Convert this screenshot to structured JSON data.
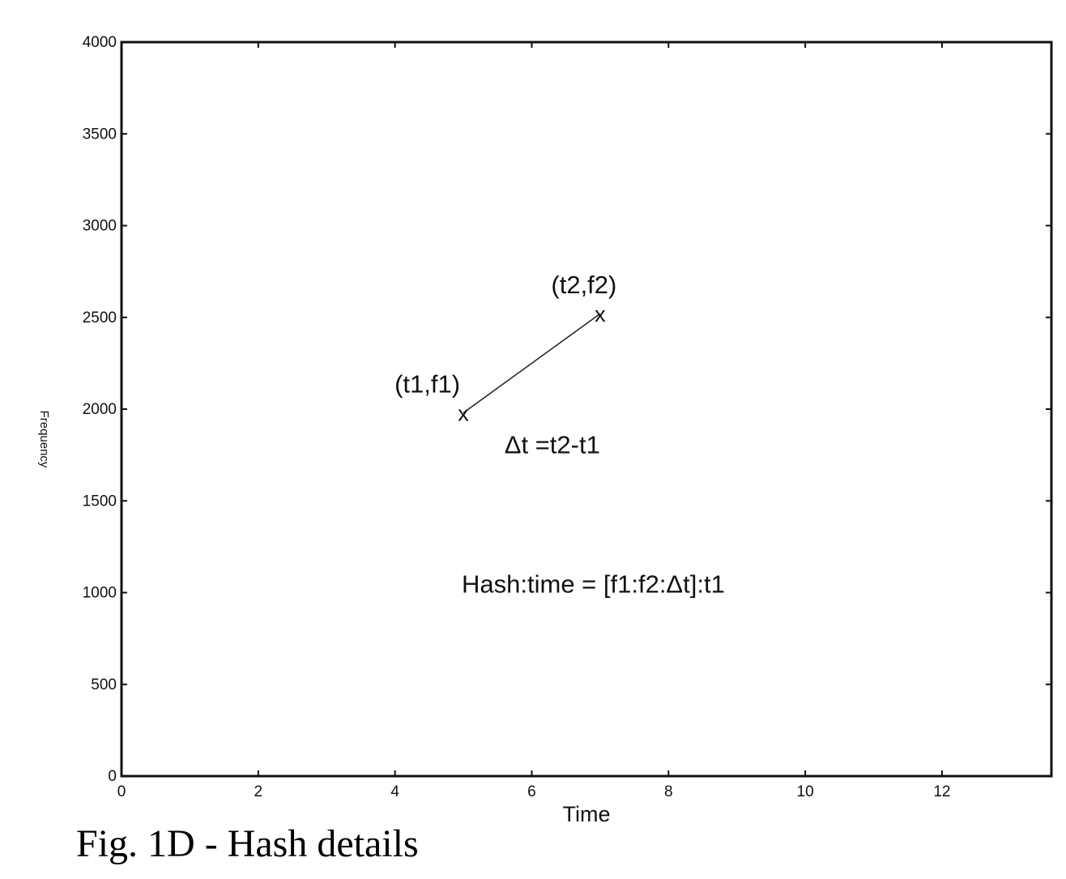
{
  "caption": "Fig. 1D - Hash details",
  "chart_data": {
    "type": "scatter",
    "title": "",
    "xlabel": "Time",
    "ylabel": "Frequency",
    "xlim": [
      0,
      13.6
    ],
    "ylim": [
      0,
      4000
    ],
    "xticks": [
      0,
      2,
      4,
      6,
      8,
      10,
      12
    ],
    "yticks": [
      0,
      500,
      1000,
      1500,
      2000,
      2500,
      3000,
      3500,
      4000
    ],
    "grid": false,
    "points": [
      {
        "label": "(t1,f1)",
        "marker": "x",
        "x": 5,
        "y": 1980
      },
      {
        "label": "(t2,f2)",
        "marker": "x",
        "x": 7,
        "y": 2520
      }
    ],
    "segments": [
      {
        "from": 0,
        "to": 1
      }
    ],
    "annotations": [
      {
        "text": "Δt =t2-t1",
        "x": 6.3,
        "y": 1760
      },
      {
        "text": "Hash:time = [f1:f2:Δt]:t1",
        "x": 6.9,
        "y": 1000
      }
    ]
  }
}
